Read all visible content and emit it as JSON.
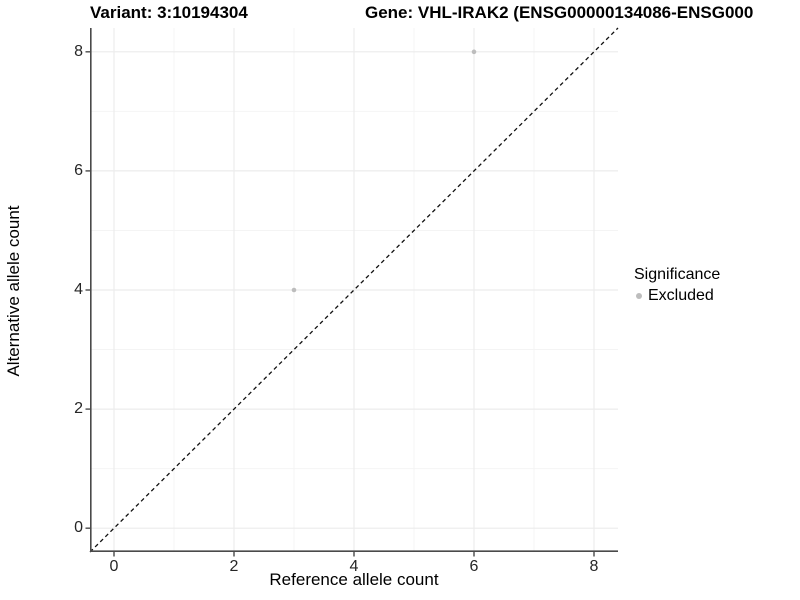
{
  "titles": {
    "left": "Variant: 3:10194304",
    "right": "Gene: VHL-IRAK2 (ENSG00000134086-ENSG000"
  },
  "chart_data": {
    "type": "scatter",
    "xlabel": "Reference allele count",
    "ylabel": "Alternative allele count",
    "xlim": [
      -0.4,
      8.4
    ],
    "ylim": [
      -0.4,
      8.4
    ],
    "x_ticks": [
      0,
      2,
      4,
      6,
      8
    ],
    "x_minor_ticks": [
      1,
      3,
      5,
      7
    ],
    "y_ticks": [
      0,
      2,
      4,
      6,
      8
    ],
    "y_minor_ticks": [
      1,
      3,
      5,
      7
    ],
    "grid": true,
    "identity_line": {
      "style": "dashed",
      "from": [
        -0.4,
        -0.4
      ],
      "to": [
        8.4,
        8.4
      ],
      "color": "#111111"
    },
    "series": [
      {
        "name": "Excluded",
        "color": "#bdbdbd",
        "points": [
          [
            3,
            4
          ],
          [
            6,
            8
          ]
        ]
      }
    ],
    "legend": {
      "title": "Significance",
      "position": "right",
      "items": [
        {
          "label": "Excluded",
          "color": "#bdbdbd",
          "marker": "circle"
        }
      ]
    }
  },
  "colors": {
    "background": "#ffffff",
    "axis": "#4a4a4a",
    "tick_label": "#262626",
    "grid_major": "#ececec",
    "grid_minor": "#f4f4f4"
  }
}
